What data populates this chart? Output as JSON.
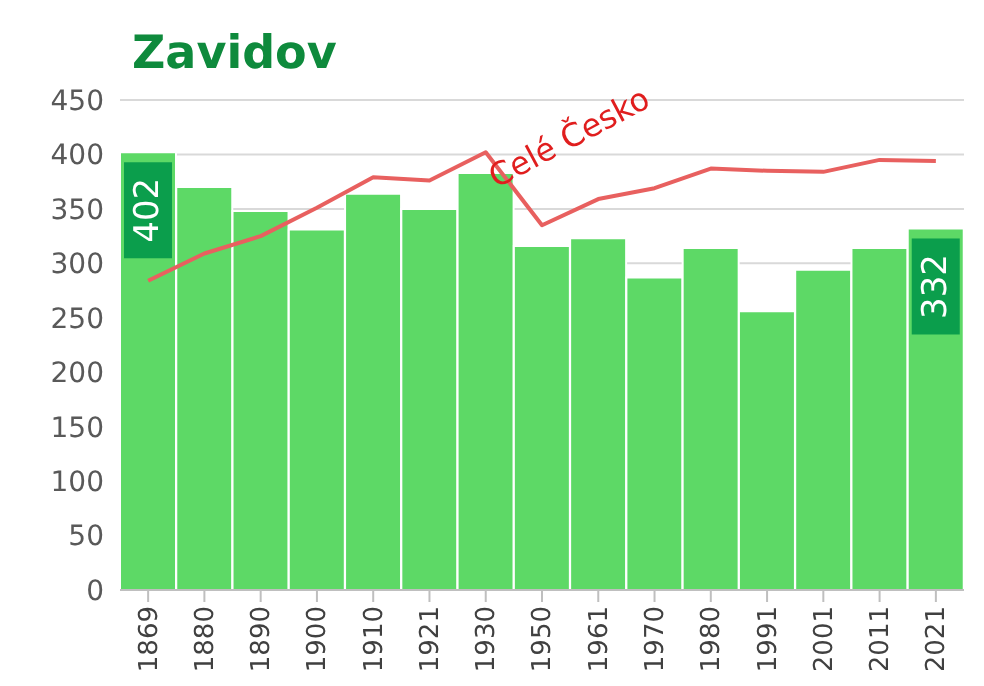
{
  "chart_data": {
    "type": "bar",
    "title": "Zavidov",
    "categories": [
      "1869",
      "1880",
      "1890",
      "1900",
      "1910",
      "1921",
      "1930",
      "1950",
      "1961",
      "1970",
      "1980",
      "1991",
      "2001",
      "2011",
      "2021"
    ],
    "series": [
      {
        "color": "#5dd966",
        "values": [
          402,
          370,
          348,
          331,
          364,
          350,
          383,
          316,
          323,
          287,
          314,
          256,
          294,
          314,
          332
        ],
        "value_labels": [
          "402",
          null,
          null,
          null,
          null,
          null,
          null,
          null,
          null,
          null,
          null,
          null,
          null,
          null,
          "332"
        ]
      },
      {
        "type": "line",
        "name": "Celé Česko",
        "color": "#e8605f",
        "values": [
          284,
          309,
          325,
          351,
          379,
          376,
          402,
          335,
          359,
          369,
          387,
          385,
          384,
          395,
          394
        ]
      }
    ],
    "ylim": [
      0,
      450
    ],
    "yticks": [
      0,
      50,
      100,
      150,
      200,
      250,
      300,
      350,
      400,
      450
    ],
    "grid": "y",
    "marker": "none"
  }
}
